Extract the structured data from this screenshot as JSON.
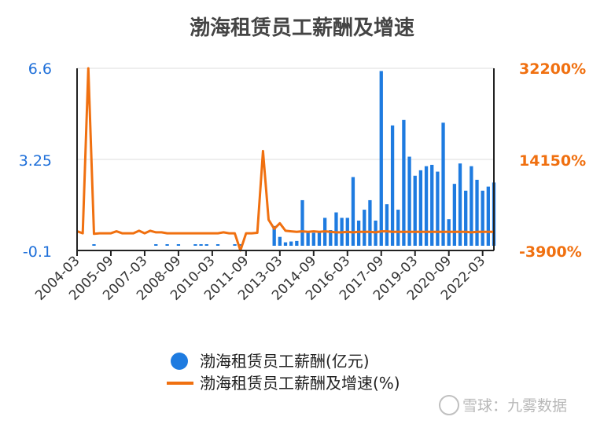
{
  "chart_data": {
    "type": "bar+line",
    "title": "渤海租赁员工薪酬及增速",
    "x": [
      "2004-03",
      "2004-06",
      "2004-09",
      "2004-12",
      "2005-03",
      "2005-06",
      "2005-09",
      "2005-12",
      "2006-03",
      "2006-06",
      "2006-09",
      "2006-12",
      "2007-03",
      "2007-06",
      "2007-09",
      "2007-12",
      "2008-03",
      "2008-06",
      "2008-09",
      "2008-12",
      "2009-03",
      "2009-06",
      "2009-09",
      "2009-12",
      "2010-03",
      "2010-06",
      "2010-09",
      "2010-12",
      "2011-03",
      "2011-06",
      "2011-09",
      "2011-12",
      "2012-03",
      "2012-06",
      "2012-09",
      "2012-12",
      "2013-03",
      "2013-06",
      "2013-09",
      "2013-12",
      "2014-03",
      "2014-06",
      "2014-09",
      "2014-12",
      "2015-03",
      "2015-06",
      "2015-09",
      "2015-12",
      "2016-03",
      "2016-06",
      "2016-09",
      "2016-12",
      "2017-03",
      "2017-06",
      "2017-09",
      "2017-12",
      "2018-03",
      "2018-06",
      "2018-09",
      "2018-12",
      "2019-03",
      "2019-06",
      "2019-09",
      "2019-12",
      "2020-03",
      "2020-06",
      "2020-09",
      "2020-12",
      "2021-03",
      "2021-06",
      "2021-09",
      "2021-12",
      "2022-03",
      "2022-06",
      "2022-09"
    ],
    "x_tick_labels": [
      "2004-03",
      "2005-09",
      "2007-03",
      "2008-09",
      "2010-03",
      "2011-09",
      "2013-03",
      "2014-09",
      "2016-03",
      "2017-09",
      "2019-03",
      "2020-09",
      "2022-03"
    ],
    "series": [
      {
        "name": "渤海租赁员工薪酬(亿元)",
        "type": "bar",
        "axis": "left",
        "color": "#1e7be0",
        "values": [
          0,
          0,
          0,
          0.02,
          0,
          0,
          0,
          0,
          0,
          0,
          0,
          0,
          0,
          0,
          0.06,
          0,
          0.03,
          0,
          0.02,
          0,
          0,
          0.03,
          0.03,
          0.03,
          0,
          0.03,
          0,
          0,
          0.08,
          0.08,
          0,
          0,
          0,
          0,
          0,
          0.8,
          0.4,
          0.2,
          0.23,
          0.25,
          1.75,
          0.55,
          0.55,
          0.6,
          1.1,
          0.65,
          1.3,
          1.1,
          1.1,
          2.6,
          1.0,
          1.4,
          1.75,
          1.0,
          6.5,
          1.6,
          4.5,
          1.4,
          4.7,
          3.35,
          2.65,
          2.85,
          3.0,
          3.05,
          2.8,
          4.6,
          1.05,
          2.35,
          3.1,
          2.1,
          3.0,
          2.5,
          2.1,
          2.25,
          2.4
        ]
      },
      {
        "name": "渤海租赁员工薪酬及增速(%)",
        "type": "line",
        "axis": "right",
        "color": "#f07010",
        "values": [
          -100,
          -500,
          32200,
          -600,
          -500,
          -500,
          -500,
          -100,
          -500,
          -500,
          -500,
          0,
          -500,
          0,
          -300,
          -300,
          -500,
          -500,
          -500,
          -500,
          -500,
          -500,
          -500,
          -500,
          -500,
          -500,
          -300,
          -500,
          -500,
          -3900,
          -500,
          -500,
          -400,
          15800,
          2200,
          400,
          1500,
          0,
          -100,
          -200,
          -100,
          -200,
          -100,
          -200,
          -100,
          -200,
          -300,
          -300,
          -200,
          -300,
          -200,
          -200,
          -200,
          -300,
          -100,
          -100,
          -200,
          -200,
          -200,
          -200,
          -200,
          -200,
          -200,
          -200,
          -200,
          -200,
          -200,
          -200,
          -200,
          -200,
          -300,
          -200,
          -200,
          -200,
          -200
        ]
      }
    ],
    "y_left": {
      "ticks": [
        "6.6",
        "3.25",
        "-0.1"
      ],
      "ylim": [
        -0.1,
        6.6
      ]
    },
    "y_right": {
      "ticks": [
        "32200%",
        "14150%",
        "-3900%"
      ],
      "ylim": [
        -3900,
        32200
      ]
    },
    "grid": true,
    "legend": "bottom-center"
  },
  "legend_items": [
    {
      "label": "渤海租赁员工薪酬(亿元)"
    },
    {
      "label": "渤海租赁员工薪酬及增速(%)"
    }
  ],
  "watermark": "雪球：九雾数据",
  "colors": {
    "bar": "#1e7be0",
    "line": "#f07010",
    "left_axis_text": "#1e6fd9",
    "right_axis_text": "#f07010"
  }
}
